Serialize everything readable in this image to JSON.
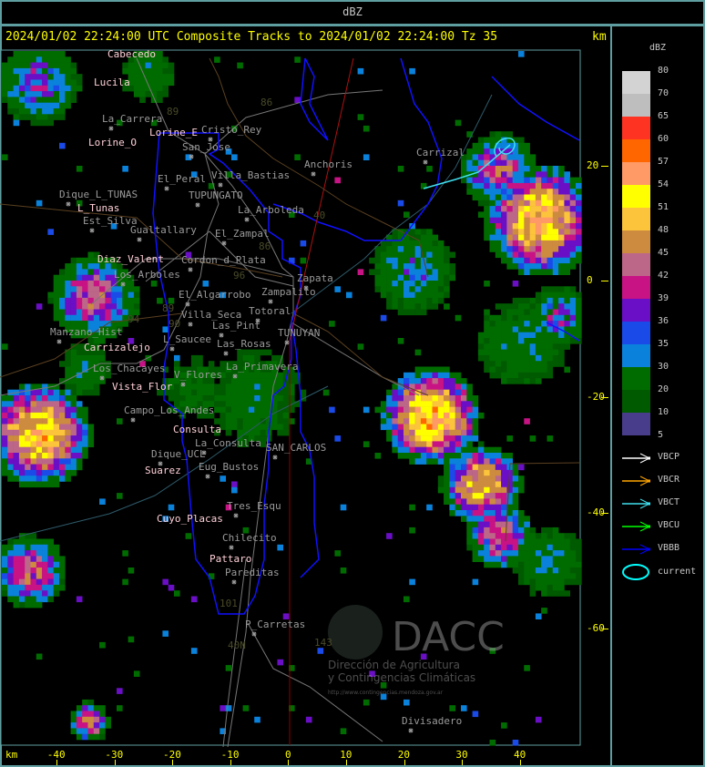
{
  "top_bar": {
    "title": "dBZ"
  },
  "header": {
    "title": "2024/01/02 22:24:00 UTC Composite Tracks to 2024/01/02 22:24:00 Tz 35",
    "unit_label": "km"
  },
  "axes": {
    "x_unit": "km",
    "x_ticks": [
      "-40",
      "-30",
      "-20",
      "-10",
      "0",
      "10",
      "20",
      "30",
      "40"
    ],
    "y_ticks": [
      "20",
      "0",
      "-20",
      "-40",
      "-60"
    ]
  },
  "legend": {
    "title": "dBZ",
    "scale": [
      {
        "label": "80",
        "color": "#d3d3d3"
      },
      {
        "label": "70",
        "color": "#bebebe"
      },
      {
        "label": "65",
        "color": "#ff3322"
      },
      {
        "label": "60",
        "color": "#ff6600"
      },
      {
        "label": "57",
        "color": "#ff9966"
      },
      {
        "label": "54",
        "color": "#ffff00"
      },
      {
        "label": "51",
        "color": "#fcc43a"
      },
      {
        "label": "48",
        "color": "#cd8b3f"
      },
      {
        "label": "45",
        "color": "#bd6788"
      },
      {
        "label": "42",
        "color": "#c81385"
      },
      {
        "label": "39",
        "color": "#6a0fc5"
      },
      {
        "label": "36",
        "color": "#1a4ae8"
      },
      {
        "label": "35",
        "color": "#0a82dc"
      },
      {
        "label": "30",
        "color": "#006c00"
      },
      {
        "label": "20",
        "color": "#005a00"
      },
      {
        "label": "10",
        "color": "#483d8b"
      },
      {
        "label": "5",
        "color": ""
      }
    ],
    "tracks": [
      {
        "label": "VBCP",
        "color": "#ffffff"
      },
      {
        "label": "VBCR",
        "color": "#ffa500"
      },
      {
        "label": "VBCT",
        "color": "#40e0f0"
      },
      {
        "label": "VBCU",
        "color": "#00ff00"
      },
      {
        "label": "VBBB",
        "color": "#0000ff"
      }
    ],
    "current_label": "current",
    "current_color": "#00ffff"
  },
  "places_highlight": [
    "Cabecedo",
    "Lucila",
    "Lorine_E",
    "Lorine_O",
    "L_Tunas",
    "Diaz_Valent",
    "Carrizalejo",
    "Vista_Flor",
    "Consulta",
    "Suarez",
    "Cuyo_Placas",
    "Pattaro"
  ],
  "places": [
    "La_Carrera",
    "Cristo_Rey",
    "San_Jose",
    "Villa_Bastias",
    "Anchoris",
    "Carrizal",
    "El_Peral",
    "Dique_L_TUNAS",
    "TUPUNGATO",
    "La_Arboleda",
    "Est_Silva",
    "Gualtallary",
    "El_Zampal",
    "Cordon_d_Plata",
    "Los_Arboles",
    "Zapata",
    "El_Algarrobo",
    "Zampalito",
    "Villa_Seca",
    "Totoral",
    "Las_Pint",
    "TUNUYAN",
    "L_Saucee",
    "Las_Rosas",
    "Manzano_Hist",
    "Los_Chacayes",
    "La_Primavera",
    "V_Flores",
    "Campo_Los_Andes",
    "La_Consulta",
    "SAN_CARLOS",
    "Dique_UCL",
    "Eug_Bustos",
    "Tres_Esqu",
    "Chilecito",
    "Pareditas",
    "P_Carretas",
    "Divisadero"
  ],
  "road_numbers": [
    "86",
    "89",
    "40",
    "86",
    "96",
    "90",
    "94",
    "89",
    "101",
    "143",
    "40N"
  ],
  "watermark": {
    "logo": "DACC",
    "line1": "Dirección de Agricultura",
    "line2": "y Contingencias Climáticas",
    "url": "http://www.contingencias.mendoza.gov.ar"
  }
}
